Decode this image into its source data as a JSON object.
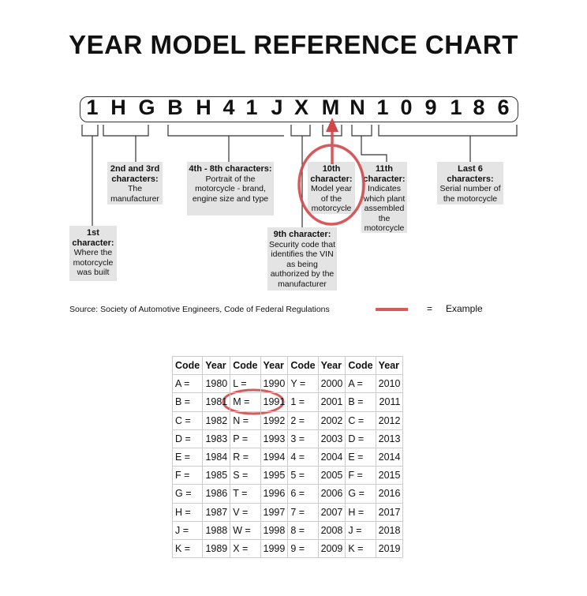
{
  "title": "YEAR MODEL REFERENCE CHART",
  "vin": [
    "1",
    "H",
    "G",
    "B",
    "H",
    "4",
    "1",
    "J",
    "X",
    "M",
    "N",
    "1",
    "0",
    "9",
    "1",
    "8",
    "6"
  ],
  "labels": {
    "first": {
      "heading": "1st character:",
      "text": "Where the motorcycle was built"
    },
    "second_third": {
      "heading": "2nd and 3rd characters:",
      "text": "The manufacturer"
    },
    "fourth_eighth": {
      "heading": "4th - 8th characters:",
      "text": "Portrait of the motorcycle - brand, engine size and type"
    },
    "ninth": {
      "heading": "9th character:",
      "text": "Security code that identifies the VIN as being authorized by the manufacturer"
    },
    "tenth": {
      "heading": "10th character:",
      "text": "Model year of the motorcycle"
    },
    "eleventh": {
      "heading": "11th character:",
      "text": "Indicates which plant assembled the motorcycle"
    },
    "last6": {
      "heading": "Last 6 characters:",
      "text": "Serial number of the motorcycle"
    }
  },
  "source": "Source:  Society of Automotive Engineers, Code of Federal Regulations",
  "legend": {
    "equals": "=",
    "label": "Example",
    "color": "#d0494a"
  },
  "table": {
    "headers": [
      "Code",
      "Year",
      "Code",
      "Year",
      "Code",
      "Year",
      "Code",
      "Year"
    ],
    "rows": [
      [
        "A =",
        "1980",
        "L =",
        "1990",
        "Y =",
        "2000",
        "A =",
        "2010"
      ],
      [
        "B =",
        "1981",
        "M =",
        "1991",
        "1 =",
        "2001",
        "B =",
        "2011"
      ],
      [
        "C =",
        "1982",
        "N =",
        "1992",
        "2 =",
        "2002",
        "C =",
        "2012"
      ],
      [
        "D =",
        "1983",
        "P =",
        "1993",
        "3 =",
        "2003",
        "D =",
        "2013"
      ],
      [
        "E =",
        "1984",
        "R =",
        "1994",
        "4 =",
        "2004",
        "E =",
        "2014"
      ],
      [
        "F =",
        "1985",
        "S =",
        "1995",
        "5 =",
        "2005",
        "F =",
        "2015"
      ],
      [
        "G =",
        "1986",
        "T =",
        "1996",
        "6 =",
        "2006",
        "G =",
        "2016"
      ],
      [
        "H =",
        "1987",
        "V =",
        "1997",
        "7 =",
        "2007",
        "H =",
        "2017"
      ],
      [
        "J =",
        "1988",
        "W =",
        "1998",
        "8 =",
        "2008",
        "J =",
        "2018"
      ],
      [
        "K =",
        "1989",
        "X =",
        "1999",
        "9 =",
        "2009",
        "K =",
        "2019"
      ]
    ]
  }
}
